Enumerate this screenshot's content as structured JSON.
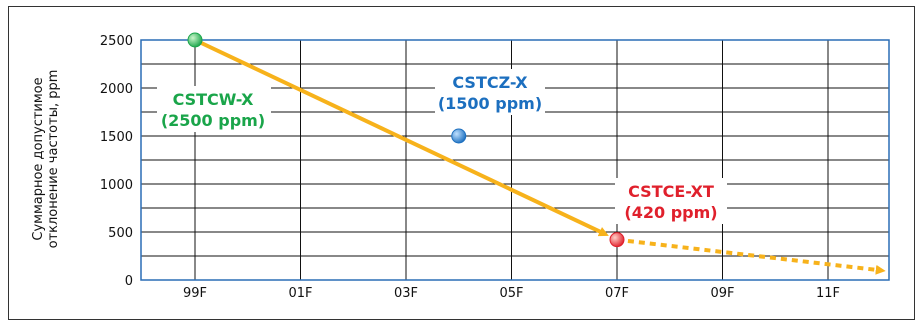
{
  "chart_data": {
    "type": "scatter",
    "title": "",
    "xlabel": "",
    "ylabel_line1": "Суммарное допустимое",
    "ylabel_line2": "отклонение частоты, ppm",
    "x_ticks": [
      "99F",
      "01F",
      "03F",
      "05F",
      "07F",
      "09F",
      "11F"
    ],
    "y_ticks": [
      0,
      500,
      1000,
      1500,
      2000,
      2500
    ],
    "ylim": [
      0,
      2500
    ],
    "grid": true,
    "points": [
      {
        "name": "CSTCW-X",
        "x": "99F",
        "y": 2500,
        "label_line1": "CSTCW-X",
        "label_line2": "(2500 ppm)",
        "color": "#1aa54a"
      },
      {
        "name": "CSTCZ-X",
        "x": "04F",
        "y": 1500,
        "label_line1": "CSTCZ-X",
        "label_line2": "(1500 ppm)",
        "color": "#1c6fbf"
      },
      {
        "name": "CSTCE-XT",
        "x": "07F",
        "y": 420,
        "label_line1": "CSTCE-XT",
        "label_line2": "(420 ppm)",
        "color": "#e0202c"
      }
    ],
    "trend": {
      "color": "#f7b21b",
      "solid_from": "CSTCW-X",
      "solid_to": "CSTCE-XT",
      "dashed_continues_to": "12F",
      "dashed_end_value": 100
    },
    "colors": {
      "grid": "#111111",
      "axis_frame": "#2a6db5"
    }
  }
}
